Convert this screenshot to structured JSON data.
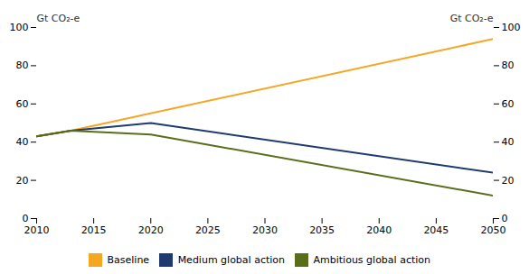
{
  "chart_data": {
    "type": "line",
    "ylabel": "Gt CO₂-e",
    "y2label": "Gt CO₂-e",
    "xlim": [
      2010,
      2050
    ],
    "xticks": [
      2010,
      2015,
      2020,
      2025,
      2030,
      2035,
      2040,
      2045,
      2050
    ],
    "ylim": [
      0,
      100
    ],
    "yticks": [
      0,
      20,
      40,
      60,
      80,
      100
    ],
    "y2lim": [
      0,
      100
    ],
    "y2ticks": [
      0,
      20,
      40,
      60,
      80,
      100
    ],
    "grid": false,
    "legend": "bottom",
    "series": [
      {
        "name": "Baseline",
        "color": "#F5A623",
        "x": [
          2010,
          2013,
          2050
        ],
        "values": [
          43,
          46,
          94
        ]
      },
      {
        "name": "Medium global action",
        "color": "#1F3A6E",
        "x": [
          2010,
          2013,
          2020,
          2050
        ],
        "values": [
          43,
          46,
          50,
          24
        ]
      },
      {
        "name": "Ambitious global action",
        "color": "#5A6E1A",
        "x": [
          2010,
          2013,
          2020,
          2050
        ],
        "values": [
          43,
          46,
          44,
          12
        ]
      }
    ]
  }
}
